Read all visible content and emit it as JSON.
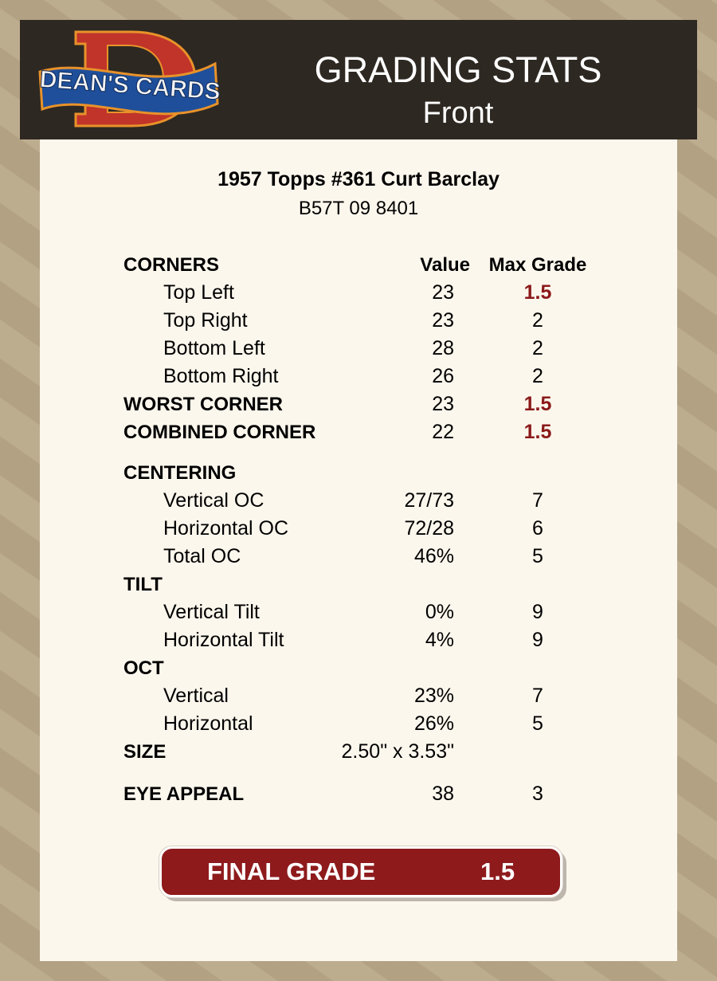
{
  "header": {
    "logo_text": "DEAN'S CARDS",
    "title": "GRADING STATS",
    "subtitle": "Front"
  },
  "card": {
    "title": "1957 Topps #361 Curt Barclay",
    "cert": "B57T 09 8401"
  },
  "columns": {
    "value": "Value",
    "max_grade": "Max Grade"
  },
  "rows": [
    {
      "label": "CORNERS",
      "type": "hdr"
    },
    {
      "label": "Top Left",
      "value": "23",
      "max": "1.5",
      "type": "sub",
      "highlight": true
    },
    {
      "label": "Top Right",
      "value": "23",
      "max": "2",
      "type": "sub"
    },
    {
      "label": "Bottom Left",
      "value": "28",
      "max": "2",
      "type": "sub"
    },
    {
      "label": "Bottom Right",
      "value": "26",
      "max": "2",
      "type": "sub"
    },
    {
      "label": "WORST CORNER",
      "value": "23",
      "max": "1.5",
      "type": "bold",
      "highlight": true
    },
    {
      "label": "COMBINED CORNER",
      "value": "22",
      "max": "1.5",
      "type": "bold",
      "highlight": true
    },
    {
      "label": "CENTERING",
      "type": "bold"
    },
    {
      "label": "Vertical OC",
      "value": "27/73",
      "max": "7",
      "type": "sub"
    },
    {
      "label": "Horizontal OC",
      "value": "72/28",
      "max": "6",
      "type": "sub"
    },
    {
      "label": "Total OC",
      "value": "46%",
      "max": "5",
      "type": "sub"
    },
    {
      "label": "TILT",
      "type": "bold"
    },
    {
      "label": "Vertical Tilt",
      "value": "0%",
      "max": "9",
      "type": "sub"
    },
    {
      "label": "Horizontal Tilt",
      "value": "4%",
      "max": "9",
      "type": "sub"
    },
    {
      "label": "OCT",
      "type": "bold"
    },
    {
      "label": "Vertical",
      "value": "23%",
      "max": "7",
      "type": "sub"
    },
    {
      "label": "Horizontal",
      "value": "26%",
      "max": "5",
      "type": "sub"
    },
    {
      "label": "SIZE",
      "value": "2.50\" x 3.53\"",
      "type": "bold"
    },
    {
      "label": "EYE APPEAL",
      "value": "38",
      "max": "3",
      "type": "bold"
    }
  ],
  "final": {
    "label": "FINAL GRADE",
    "value": "1.5"
  },
  "colors": {
    "accent": "#8e1a1c",
    "header_bg": "#2e2822",
    "panel_bg": "#fcf7ed"
  }
}
